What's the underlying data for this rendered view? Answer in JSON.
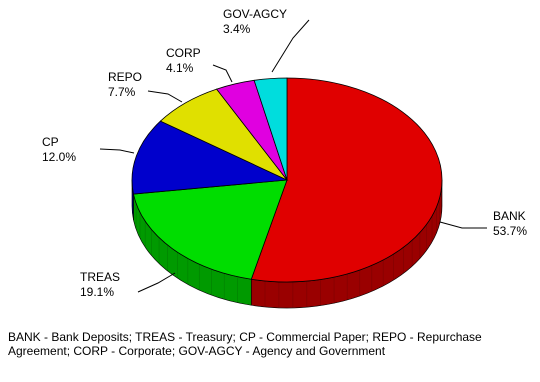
{
  "chart_data": {
    "type": "pie",
    "style": "3d",
    "slices": [
      {
        "label": "BANK",
        "value": 53.7,
        "display": "53.7%",
        "color": "#e00000",
        "side_color": "#9a0000",
        "label_side": "right"
      },
      {
        "label": "TREAS",
        "value": 19.1,
        "display": "19.1%",
        "color": "#00dd00",
        "side_color": "#009a00",
        "label_side": "left"
      },
      {
        "label": "CP",
        "value": 12.0,
        "display": "12.0%",
        "color": "#0000cc",
        "side_color": "#000088",
        "label_side": "left"
      },
      {
        "label": "REPO",
        "value": 7.7,
        "display": "7.7%",
        "color": "#e0e000",
        "side_color": "#9a9a00",
        "label_side": "left"
      },
      {
        "label": "CORP",
        "value": 4.1,
        "display": "4.1%",
        "color": "#e000e0",
        "side_color": "#9a009a",
        "label_side": "left"
      },
      {
        "label": "GOV-AGCY",
        "value": 3.4,
        "display": "3.4%",
        "color": "#00dddd",
        "side_color": "#009a9a",
        "label_side": "left"
      }
    ]
  },
  "footnote": "BANK - Bank Deposits; TREAS - Treasury; CP - Commercial Paper; REPO - Repurchase Agreement; CORP - Corporate; GOV-AGCY - Agency and Government"
}
